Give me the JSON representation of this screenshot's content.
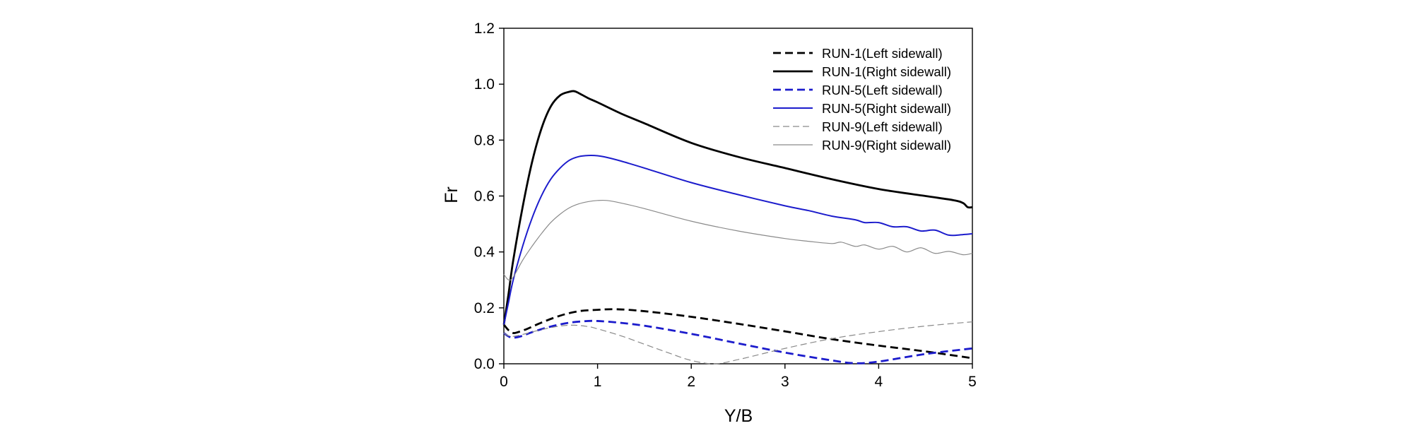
{
  "chart_data": {
    "type": "line",
    "title": "",
    "xlabel": "Y/B",
    "ylabel": "Fr",
    "xlim": [
      0,
      5
    ],
    "ylim": [
      0,
      1.2
    ],
    "xticks": [
      "0",
      "1",
      "2",
      "3",
      "4",
      "5"
    ],
    "yticks": [
      "0.0",
      "0.2",
      "0.4",
      "0.6",
      "0.8",
      "1.0",
      "1.2"
    ],
    "grid": false,
    "legend_position": "top-right",
    "series": [
      {
        "name": "RUN-1(Left sidewall)",
        "color": "#000000",
        "style": "dashed",
        "weight": "thick",
        "x": [
          0,
          0.05,
          0.1,
          0.15,
          0.25,
          0.4,
          0.6,
          0.8,
          1.0,
          1.2,
          1.5,
          2.0,
          2.5,
          3.0,
          3.5,
          4.0,
          4.5,
          5.0
        ],
        "y": [
          0.14,
          0.12,
          0.11,
          0.113,
          0.125,
          0.147,
          0.172,
          0.188,
          0.193,
          0.195,
          0.188,
          0.168,
          0.143,
          0.116,
          0.088,
          0.065,
          0.044,
          0.02
        ]
      },
      {
        "name": "RUN-1(Right sidewall)",
        "color": "#000000",
        "style": "solid",
        "weight": "thick",
        "x": [
          0,
          0.05,
          0.1,
          0.2,
          0.3,
          0.4,
          0.5,
          0.6,
          0.7,
          0.75,
          0.8,
          0.9,
          1.0,
          1.25,
          1.5,
          2.0,
          2.5,
          3.0,
          3.5,
          4.0,
          4.5,
          4.8,
          4.9,
          4.95,
          5.0
        ],
        "y": [
          0.14,
          0.25,
          0.37,
          0.56,
          0.72,
          0.84,
          0.92,
          0.96,
          0.973,
          0.975,
          0.968,
          0.95,
          0.935,
          0.895,
          0.86,
          0.79,
          0.74,
          0.7,
          0.66,
          0.625,
          0.6,
          0.585,
          0.575,
          0.56,
          0.56
        ]
      },
      {
        "name": "RUN-5(Left sidewall)",
        "color": "#1c1ccc",
        "style": "dashed",
        "weight": "thick",
        "x": [
          0,
          0.05,
          0.1,
          0.2,
          0.3,
          0.5,
          0.7,
          0.9,
          1.0,
          1.2,
          1.5,
          2.0,
          2.5,
          3.0,
          3.5,
          3.75,
          4.0,
          4.5,
          5.0
        ],
        "y": [
          0.11,
          0.098,
          0.093,
          0.1,
          0.113,
          0.133,
          0.147,
          0.153,
          0.153,
          0.148,
          0.136,
          0.107,
          0.073,
          0.04,
          0.012,
          0.002,
          0.008,
          0.035,
          0.055
        ]
      },
      {
        "name": "RUN-5(Right sidewall)",
        "color": "#1c1ccc",
        "style": "solid",
        "weight": "medium",
        "x": [
          0,
          0.05,
          0.1,
          0.2,
          0.3,
          0.4,
          0.5,
          0.6,
          0.7,
          0.8,
          0.9,
          1.0,
          1.1,
          1.25,
          1.5,
          2.0,
          2.5,
          3.0,
          3.25,
          3.5,
          3.75,
          3.85,
          4.0,
          4.15,
          4.3,
          4.45,
          4.6,
          4.75,
          4.9,
          5.0
        ],
        "y": [
          0.14,
          0.22,
          0.3,
          0.42,
          0.52,
          0.6,
          0.66,
          0.7,
          0.728,
          0.741,
          0.745,
          0.744,
          0.738,
          0.725,
          0.7,
          0.648,
          0.605,
          0.565,
          0.548,
          0.528,
          0.515,
          0.505,
          0.505,
          0.49,
          0.49,
          0.475,
          0.478,
          0.46,
          0.462,
          0.465
        ]
      },
      {
        "name": "RUN-9(Left sidewall)",
        "color": "#8a8a8a",
        "style": "dashed",
        "weight": "thin",
        "x": [
          0,
          0.05,
          0.1,
          0.2,
          0.4,
          0.6,
          0.75,
          0.9,
          1.0,
          1.25,
          1.5,
          1.75,
          2.0,
          2.25,
          2.5,
          2.75,
          3.0,
          3.5,
          4.0,
          4.5,
          5.0
        ],
        "y": [
          0.11,
          0.1,
          0.098,
          0.105,
          0.122,
          0.135,
          0.138,
          0.133,
          0.125,
          0.1,
          0.07,
          0.04,
          0.012,
          0.0,
          0.015,
          0.035,
          0.055,
          0.09,
          0.115,
          0.135,
          0.15
        ]
      },
      {
        "name": "RUN-9(Right sidewall)",
        "color": "#8a8a8a",
        "style": "solid",
        "weight": "thin",
        "x": [
          0,
          0.05,
          0.1,
          0.2,
          0.3,
          0.4,
          0.5,
          0.6,
          0.7,
          0.8,
          0.9,
          1.0,
          1.1,
          1.25,
          1.5,
          2.0,
          2.5,
          3.0,
          3.25,
          3.5,
          3.6,
          3.75,
          3.85,
          4.0,
          4.15,
          4.3,
          4.45,
          4.6,
          4.75,
          4.9,
          5.0
        ],
        "y": [
          0.32,
          0.3,
          0.31,
          0.37,
          0.42,
          0.465,
          0.505,
          0.535,
          0.558,
          0.572,
          0.58,
          0.584,
          0.584,
          0.575,
          0.555,
          0.51,
          0.475,
          0.448,
          0.438,
          0.43,
          0.435,
          0.42,
          0.425,
          0.41,
          0.42,
          0.4,
          0.415,
          0.395,
          0.402,
          0.39,
          0.395
        ]
      }
    ]
  }
}
